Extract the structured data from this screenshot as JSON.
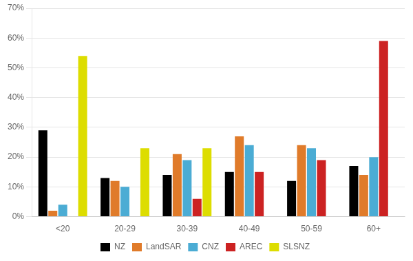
{
  "chart_data": {
    "type": "bar",
    "categories": [
      "<20",
      "20-29",
      "30-39",
      "40-49",
      "50-59",
      "60+"
    ],
    "series": [
      {
        "name": "NZ",
        "color": "#000000",
        "values": [
          29,
          13,
          14,
          15,
          12,
          17
        ]
      },
      {
        "name": "LandSAR",
        "color": "#E07B2A",
        "values": [
          2,
          12,
          21,
          27,
          24,
          14
        ]
      },
      {
        "name": "CNZ",
        "color": "#4BACD4",
        "values": [
          4,
          10,
          19,
          24,
          23,
          20
        ]
      },
      {
        "name": "AREC",
        "color": "#CC2222",
        "values": [
          0,
          0,
          6,
          15,
          19,
          59
        ]
      },
      {
        "name": "SLSNZ",
        "color": "#DDDD00",
        "values": [
          54,
          23,
          23,
          0,
          0,
          0
        ]
      }
    ],
    "ylim": [
      0,
      70
    ],
    "yticks": [
      {
        "value": 0,
        "label": "0%"
      },
      {
        "value": 10,
        "label": "10%"
      },
      {
        "value": 20,
        "label": "20%"
      },
      {
        "value": 30,
        "label": "30%"
      },
      {
        "value": 40,
        "label": "40%"
      },
      {
        "value": 50,
        "label": "50%"
      },
      {
        "value": 60,
        "label": "60%"
      },
      {
        "value": 70,
        "label": "70%"
      }
    ],
    "grid": true,
    "legend": "bottom"
  }
}
